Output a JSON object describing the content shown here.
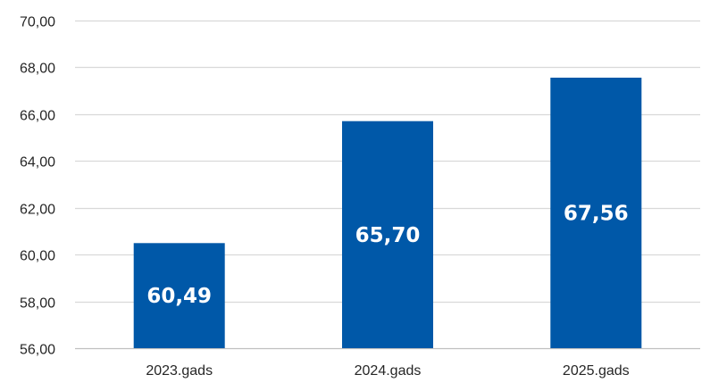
{
  "chart_data": {
    "type": "bar",
    "categories": [
      "2023.gads",
      "2024.gads",
      "2025.gads"
    ],
    "values": [
      60.49,
      65.7,
      67.56
    ],
    "data_labels": [
      "60,49",
      "65,70",
      "67,56"
    ],
    "ylim": [
      56,
      70
    ],
    "yticks": [
      56,
      58,
      60,
      62,
      64,
      66,
      68,
      70
    ],
    "ytick_labels": [
      "56,00",
      "58,00",
      "60,00",
      "62,00",
      "64,00",
      "66,00",
      "68,00",
      "70,00"
    ],
    "title": "",
    "xlabel": "",
    "ylabel": "",
    "grid": true,
    "legend": "none",
    "bar_color": "#0058A8"
  }
}
